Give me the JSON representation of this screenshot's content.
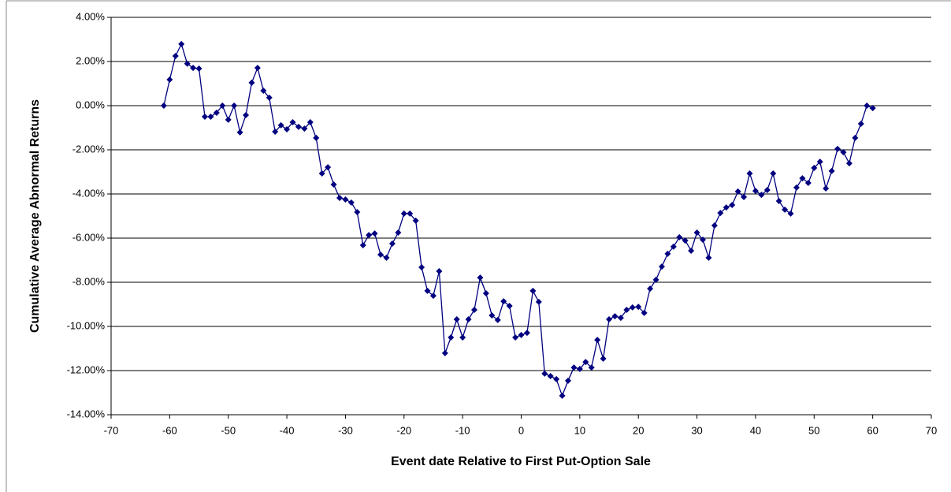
{
  "chart_data": {
    "type": "line",
    "x_label": "Event date Relative to First Put-Option Sale",
    "y_label": "Cumulative Average Abnormal Returns",
    "x": [
      -61,
      -60,
      -59,
      -58,
      -57,
      -56,
      -55,
      -54,
      -53,
      -52,
      -51,
      -50,
      -49,
      -48,
      -47,
      -46,
      -45,
      -44,
      -43,
      -42,
      -41,
      -40,
      -39,
      -38,
      -37,
      -36,
      -35,
      -34,
      -33,
      -32,
      -31,
      -30,
      -29,
      -28,
      -27,
      -26,
      -25,
      -24,
      -23,
      -22,
      -21,
      -20,
      -19,
      -18,
      -17,
      -16,
      -15,
      -14,
      -13,
      -12,
      -11,
      -10,
      -9,
      -8,
      -7,
      -6,
      -5,
      -4,
      -3,
      -2,
      -1,
      0,
      1,
      2,
      3,
      4,
      5,
      6,
      7,
      8,
      9,
      10,
      11,
      12,
      13,
      14,
      15,
      16,
      17,
      18,
      19,
      20,
      21,
      22,
      23,
      24,
      25,
      26,
      27,
      28,
      29,
      30,
      31,
      32,
      33,
      34,
      35,
      36,
      37,
      38,
      39,
      40,
      41,
      42,
      43,
      44,
      45,
      46,
      47,
      48,
      49,
      50,
      51,
      52,
      53,
      54,
      55,
      56,
      57,
      58,
      59,
      60
    ],
    "series": [
      {
        "color": "#000080",
        "values": [
          0.0,
          1.18,
          2.25,
          2.79,
          1.9,
          1.71,
          1.68,
          -0.5,
          -0.5,
          -0.32,
          0.0,
          -0.64,
          0.0,
          -1.21,
          -0.43,
          1.04,
          1.71,
          0.68,
          0.36,
          -1.18,
          -0.89,
          -1.07,
          -0.75,
          -0.96,
          -1.04,
          -0.75,
          -1.46,
          -3.07,
          -2.79,
          -3.57,
          -4.18,
          -4.25,
          -4.39,
          -4.82,
          -6.32,
          -5.86,
          -5.79,
          -6.75,
          -6.89,
          -6.25,
          -5.75,
          -4.89,
          -4.89,
          -5.21,
          -7.32,
          -8.39,
          -8.61,
          -7.5,
          -11.21,
          -10.5,
          -9.68,
          -10.5,
          -9.68,
          -9.25,
          -7.79,
          -8.5,
          -9.5,
          -9.71,
          -8.86,
          -9.07,
          -10.5,
          -10.39,
          -10.29,
          -8.39,
          -8.89,
          -12.14,
          -12.25,
          -12.39,
          -13.14,
          -12.46,
          -11.86,
          -11.93,
          -11.61,
          -11.86,
          -10.61,
          -11.46,
          -9.68,
          -9.54,
          -9.61,
          -9.25,
          -9.14,
          -9.11,
          -9.39,
          -8.29,
          -7.89,
          -7.29,
          -6.71,
          -6.39,
          -5.96,
          -6.11,
          -6.57,
          -5.75,
          -6.07,
          -6.89,
          -5.43,
          -4.86,
          -4.61,
          -4.5,
          -3.89,
          -4.14,
          -3.07,
          -3.86,
          -4.04,
          -3.82,
          -3.07,
          -4.32,
          -4.71,
          -4.89,
          -3.71,
          -3.29,
          -3.5,
          -2.82,
          -2.54,
          -3.75,
          -2.96,
          -1.96,
          -2.11,
          -2.61,
          -1.46,
          -0.82,
          0.0,
          -0.11
        ]
      }
    ],
    "xlim": [
      -70,
      70
    ],
    "xticks": [
      -70,
      -60,
      -50,
      -40,
      -30,
      -20,
      -10,
      0,
      10,
      20,
      30,
      40,
      50,
      60,
      70
    ],
    "ylim": [
      -14,
      4
    ],
    "yticks": [
      {
        "value": -14,
        "label": "-14.00%"
      },
      {
        "value": -12,
        "label": "-12.00%"
      },
      {
        "value": -10,
        "label": "-10.00%"
      },
      {
        "value": -8,
        "label": "-8.00%"
      },
      {
        "value": -6,
        "label": "-6.00%"
      },
      {
        "value": -4,
        "label": "-4.00%"
      },
      {
        "value": -2,
        "label": "-2.00%"
      },
      {
        "value": 0,
        "label": "0.00%"
      },
      {
        "value": 2,
        "label": "2.00%"
      },
      {
        "value": 4,
        "label": "4.00%"
      }
    ],
    "grid": true,
    "marker": "diamond"
  }
}
